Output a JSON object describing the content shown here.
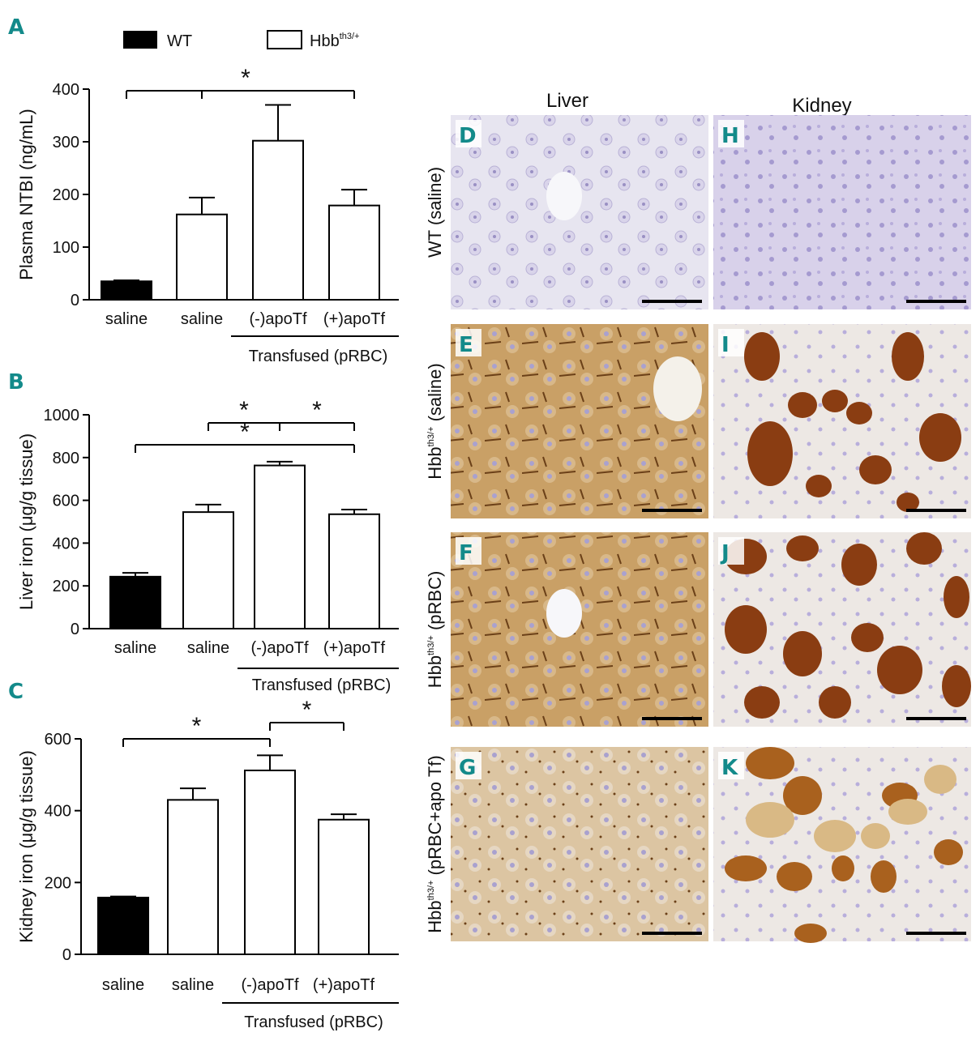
{
  "legend": {
    "wt_label": "WT",
    "hbb_label": "Hbb",
    "hbb_sup": "th3/+"
  },
  "colors": {
    "wt_fill": "#000000",
    "hbb_fill": "#ffffff",
    "panel_letter": "#138a8a",
    "liver_normal": "#d6d3e6",
    "liver_stained": "#b88a48",
    "kidney_normal": "#c9bfe0",
    "kidney_stained": "#8a3d12"
  },
  "chart_data": [
    {
      "panel": "A",
      "type": "bar",
      "ylabel": "Plasma NTBI (ng/mL)",
      "ylim": [
        0,
        400
      ],
      "yticks": [
        "0",
        "100",
        "200",
        "300",
        "400"
      ],
      "categories": [
        "saline",
        "saline",
        "(-)apoTf",
        "(+)apoTf"
      ],
      "group_label": "Transfused (pRBC)",
      "values": [
        35,
        162,
        302,
        179
      ],
      "errors": [
        2,
        32,
        68,
        30
      ],
      "genotype": [
        "WT",
        "Hbb",
        "Hbb",
        "Hbb"
      ],
      "significance": [
        {
          "from": 0,
          "to": 3,
          "label": "*",
          "from_group_mid": [
            1,
            2
          ]
        }
      ]
    },
    {
      "panel": "B",
      "type": "bar",
      "ylabel": "Liver iron (μg/g tissue)",
      "ylim": [
        0,
        1000
      ],
      "yticks": [
        "0",
        "200",
        "400",
        "600",
        "800",
        "1000"
      ],
      "categories": [
        "saline",
        "saline",
        "(-)apoTf",
        "(+)apoTf"
      ],
      "group_label": "Transfused (pRBC)",
      "values": [
        243,
        545,
        763,
        535
      ],
      "errors": [
        18,
        35,
        18,
        22
      ],
      "genotype": [
        "WT",
        "Hbb",
        "Hbb",
        "Hbb"
      ],
      "significance": [
        {
          "from": 1,
          "to": 2,
          "label": "*"
        },
        {
          "from": 2,
          "to": 3,
          "label": "*"
        },
        {
          "from": 0,
          "to": 3,
          "label": "*"
        }
      ]
    },
    {
      "panel": "C",
      "type": "bar",
      "ylabel": "Kidney iron (μg/g tissue)",
      "ylim": [
        0,
        600
      ],
      "yticks": [
        "0",
        "200",
        "400",
        "600"
      ],
      "categories": [
        "saline",
        "saline",
        "(-)apoTf",
        "(+)apoTf"
      ],
      "group_label": "Transfused (pRBC)",
      "values": [
        158,
        430,
        512,
        375
      ],
      "errors": [
        3,
        32,
        42,
        15
      ],
      "genotype": [
        "WT",
        "Hbb",
        "Hbb",
        "Hbb"
      ],
      "significance": [
        {
          "from": 0,
          "to": 2,
          "label": "*"
        },
        {
          "from": 2,
          "to": 3,
          "label": "*"
        }
      ]
    }
  ],
  "micrographs": {
    "columns": [
      "Liver",
      "Kidney"
    ],
    "rows": [
      {
        "label": "WT (saline)",
        "label_prefix": "",
        "label_sup": "",
        "liver_letter": "D",
        "kidney_letter": "H",
        "stain_level": "none"
      },
      {
        "label": " (saline)",
        "label_prefix": "Hbb",
        "label_sup": "th3/+",
        "liver_letter": "E",
        "kidney_letter": "I",
        "stain_level": "high"
      },
      {
        "label": " (pRBC)",
        "label_prefix": "Hbb",
        "label_sup": "th3/+",
        "liver_letter": "F",
        "kidney_letter": "J",
        "stain_level": "high"
      },
      {
        "label": " (pRBC+apo Tf)",
        "label_prefix": "Hbb",
        "label_sup": "th3/+",
        "liver_letter": "G",
        "kidney_letter": "K",
        "stain_level": "medium"
      }
    ]
  }
}
